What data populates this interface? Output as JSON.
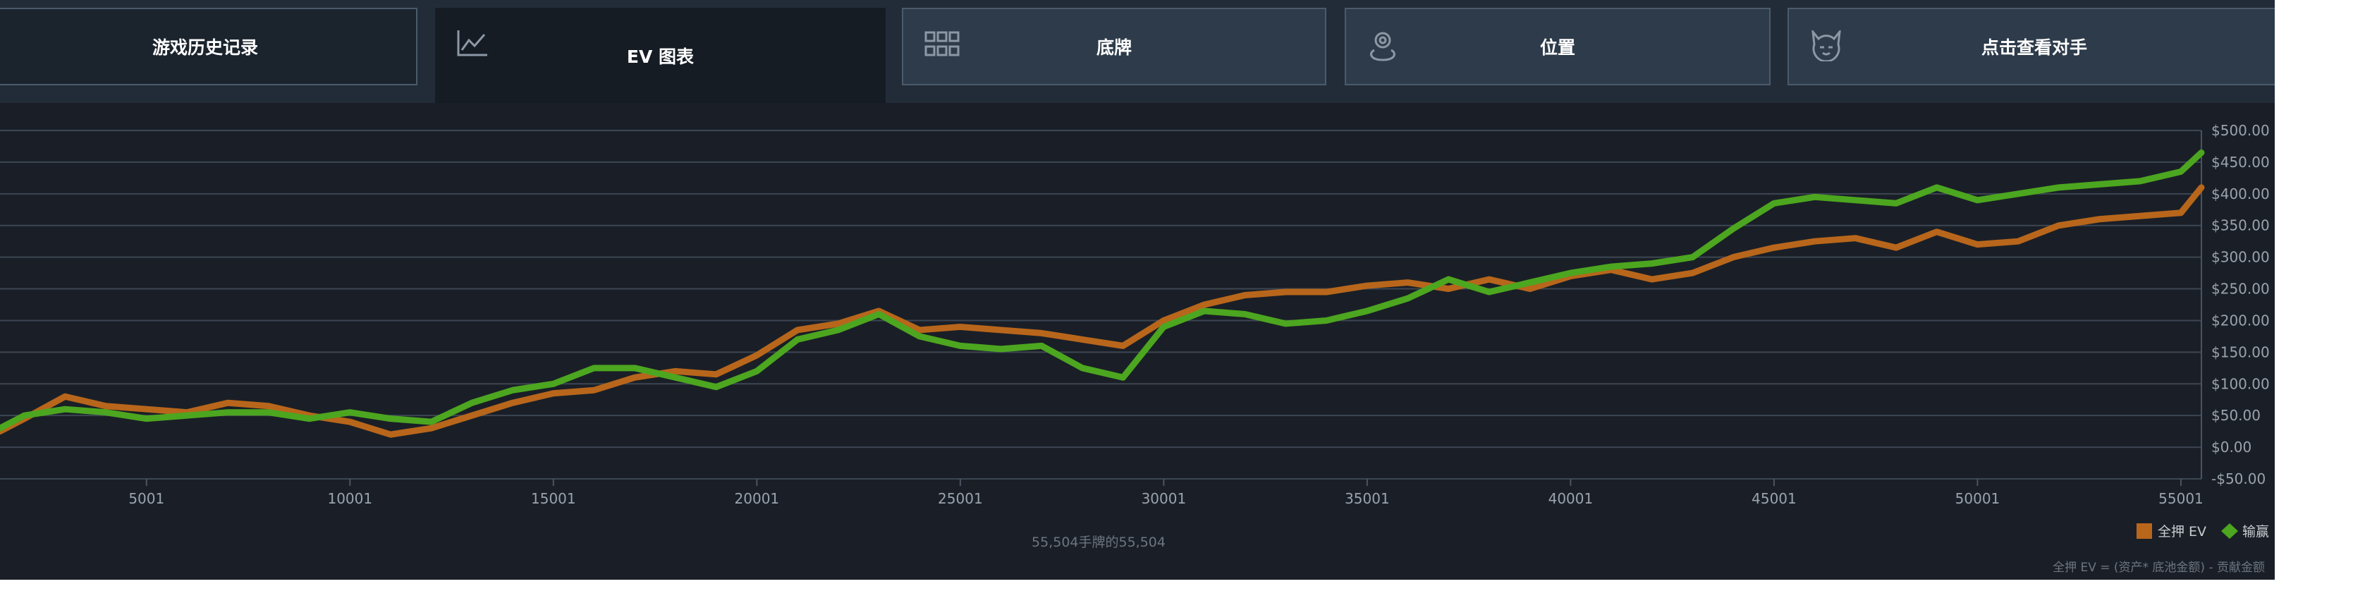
{
  "tabs": [
    "游戏历史记录",
    "EV 图表",
    "底牌",
    "位置",
    "点击查看对手"
  ],
  "chart_data": {
    "type": "line",
    "x": [
      1400,
      2000,
      3000,
      4000,
      5000,
      6000,
      7000,
      8000,
      9000,
      10000,
      11000,
      12000,
      13000,
      14000,
      15000,
      16000,
      17000,
      18000,
      19000,
      20000,
      21000,
      22000,
      23000,
      24000,
      25000,
      26000,
      27000,
      28000,
      29000,
      30000,
      31000,
      32000,
      33000,
      34000,
      35000,
      36000,
      37000,
      38000,
      39000,
      40000,
      41000,
      42000,
      43000,
      44000,
      45000,
      46000,
      47000,
      48000,
      49000,
      50000,
      51000,
      52000,
      53000,
      54000,
      55000,
      55504
    ],
    "series": [
      {
        "name": "全押 EV",
        "color": "#b8661b",
        "values": [
          25,
          45,
          80,
          65,
          60,
          55,
          70,
          65,
          50,
          40,
          20,
          30,
          50,
          70,
          85,
          90,
          110,
          120,
          115,
          145,
          185,
          195,
          215,
          185,
          190,
          185,
          180,
          170,
          160,
          200,
          225,
          240,
          245,
          245,
          255,
          260,
          250,
          265,
          250,
          270,
          280,
          265,
          275,
          300,
          315,
          325,
          330,
          315,
          340,
          320,
          325,
          350,
          360,
          365,
          370,
          410
        ]
      },
      {
        "name": "输赢",
        "color": "#4ca61f",
        "values": [
          30,
          50,
          60,
          55,
          45,
          50,
          55,
          55,
          45,
          55,
          45,
          40,
          70,
          90,
          100,
          125,
          125,
          110,
          95,
          120,
          170,
          185,
          210,
          175,
          160,
          155,
          160,
          125,
          110,
          190,
          215,
          210,
          195,
          200,
          215,
          235,
          265,
          245,
          260,
          275,
          285,
          290,
          300,
          345,
          385,
          395,
          390,
          385,
          410,
          390,
          400,
          410,
          415,
          420,
          435,
          465
        ]
      }
    ],
    "xlim": [
      1400,
      55504
    ],
    "ylim": [
      -50,
      500
    ],
    "xticks": [
      5001,
      10001,
      15001,
      20001,
      25001,
      30001,
      35001,
      40001,
      45001,
      50001,
      55001
    ],
    "yticks": [
      {
        "value": -50,
        "label": "-$50.00"
      },
      {
        "value": 0,
        "label": "$0.00"
      },
      {
        "value": 50,
        "label": "$50.00"
      },
      {
        "value": 100,
        "label": "$100.00"
      },
      {
        "value": 150,
        "label": "$150.00"
      },
      {
        "value": 200,
        "label": "$200.00"
      },
      {
        "value": 250,
        "label": "$250.00"
      },
      {
        "value": 300,
        "label": "$300.00"
      },
      {
        "value": 350,
        "label": "$350.00"
      },
      {
        "value": 400,
        "label": "$400.00"
      },
      {
        "value": 450,
        "label": "$450.00"
      },
      {
        "value": 500,
        "label": "$500.00"
      }
    ],
    "grid": true,
    "caption": "55,504手牌的55,504",
    "note": "全押 EV = (资产* 底池金额) - 贡献金额"
  }
}
